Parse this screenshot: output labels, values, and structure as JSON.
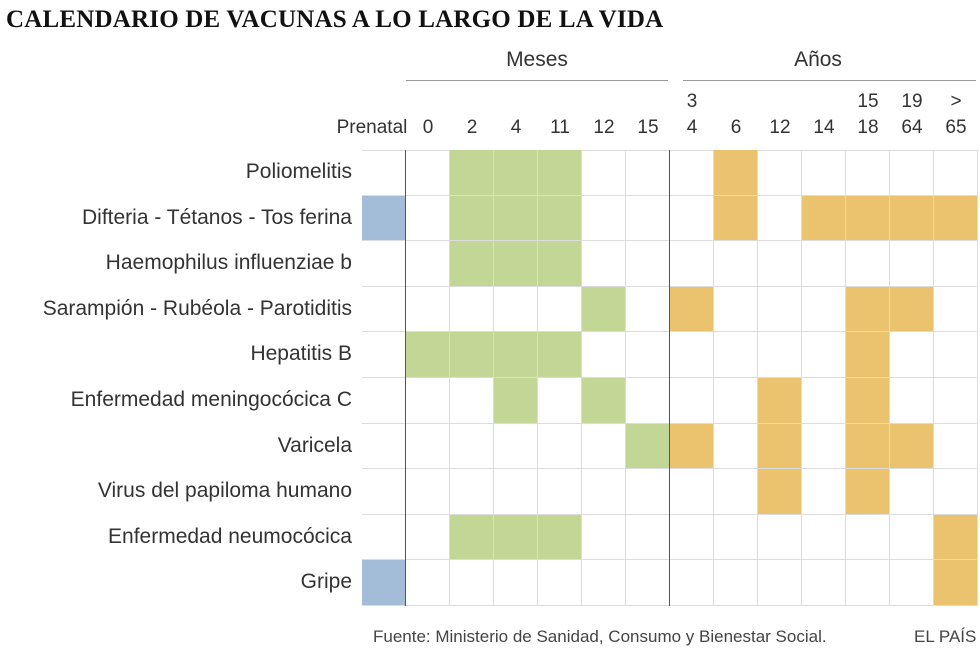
{
  "title": "CALENDARIO DE VACUNAS A LO LARGO DE LA VIDA",
  "colors": {
    "prenatal": "#a3bcd8",
    "months": "#c2d695",
    "years": "#ebc36f",
    "grid": "#dcdcdc"
  },
  "chart_data": {
    "type": "heatmap",
    "groups": [
      "Meses",
      "Años"
    ],
    "columns": [
      {
        "line1": "",
        "line2": "Prenatal",
        "group": "prenatal"
      },
      {
        "line1": "",
        "line2": "0",
        "group": "months"
      },
      {
        "line1": "",
        "line2": "2",
        "group": "months"
      },
      {
        "line1": "",
        "line2": "4",
        "group": "months"
      },
      {
        "line1": "",
        "line2": "11",
        "group": "months"
      },
      {
        "line1": "",
        "line2": "12",
        "group": "months"
      },
      {
        "line1": "",
        "line2": "15",
        "group": "months"
      },
      {
        "line1": "3",
        "line2": "4",
        "group": "years"
      },
      {
        "line1": "",
        "line2": "6",
        "group": "years"
      },
      {
        "line1": "",
        "line2": "12",
        "group": "years"
      },
      {
        "line1": "",
        "line2": "14",
        "group": "years"
      },
      {
        "line1": "15",
        "line2": "18",
        "group": "years"
      },
      {
        "line1": "19",
        "line2": "64",
        "group": "years"
      },
      {
        "line1": ">",
        "line2": "65",
        "group": "years"
      }
    ],
    "rows": [
      {
        "label": "Poliomelitis",
        "values": [
          0,
          0,
          1,
          1,
          1,
          0,
          0,
          0,
          1,
          0,
          0,
          0,
          0,
          0
        ]
      },
      {
        "label": "Difteria - Tétanos - Tos ferina",
        "values": [
          1,
          0,
          1,
          1,
          1,
          0,
          0,
          0,
          1,
          0,
          1,
          1,
          1,
          1
        ]
      },
      {
        "label": "Haemophilus influenziae b",
        "values": [
          0,
          0,
          1,
          1,
          1,
          0,
          0,
          0,
          0,
          0,
          0,
          0,
          0,
          0
        ]
      },
      {
        "label": "Sarampión - Rubéola - Parotiditis",
        "values": [
          0,
          0,
          0,
          0,
          0,
          1,
          0,
          1,
          0,
          0,
          0,
          1,
          1,
          0
        ]
      },
      {
        "label": "Hepatitis B",
        "values": [
          0,
          1,
          1,
          1,
          1,
          0,
          0,
          0,
          0,
          0,
          0,
          1,
          0,
          0
        ]
      },
      {
        "label": "Enfermedad meningocócica C",
        "values": [
          0,
          0,
          0,
          1,
          0,
          1,
          0,
          0,
          0,
          1,
          0,
          1,
          0,
          0
        ]
      },
      {
        "label": "Varicela",
        "values": [
          0,
          0,
          0,
          0,
          0,
          0,
          1,
          1,
          0,
          1,
          0,
          1,
          1,
          0
        ]
      },
      {
        "label": "Virus del papiloma humano",
        "values": [
          0,
          0,
          0,
          0,
          0,
          0,
          0,
          0,
          0,
          1,
          0,
          1,
          0,
          0
        ]
      },
      {
        "label": "Enfermedad neumocócica",
        "values": [
          0,
          0,
          1,
          1,
          1,
          0,
          0,
          0,
          0,
          0,
          0,
          0,
          0,
          1
        ]
      },
      {
        "label": "Gripe",
        "values": [
          1,
          0,
          0,
          0,
          0,
          0,
          0,
          0,
          0,
          0,
          0,
          0,
          0,
          1
        ]
      }
    ]
  },
  "footer": {
    "source": "Fuente: Ministerio de Sanidad, Consumo y Bienestar Social.",
    "credit": "EL PAÍS"
  }
}
